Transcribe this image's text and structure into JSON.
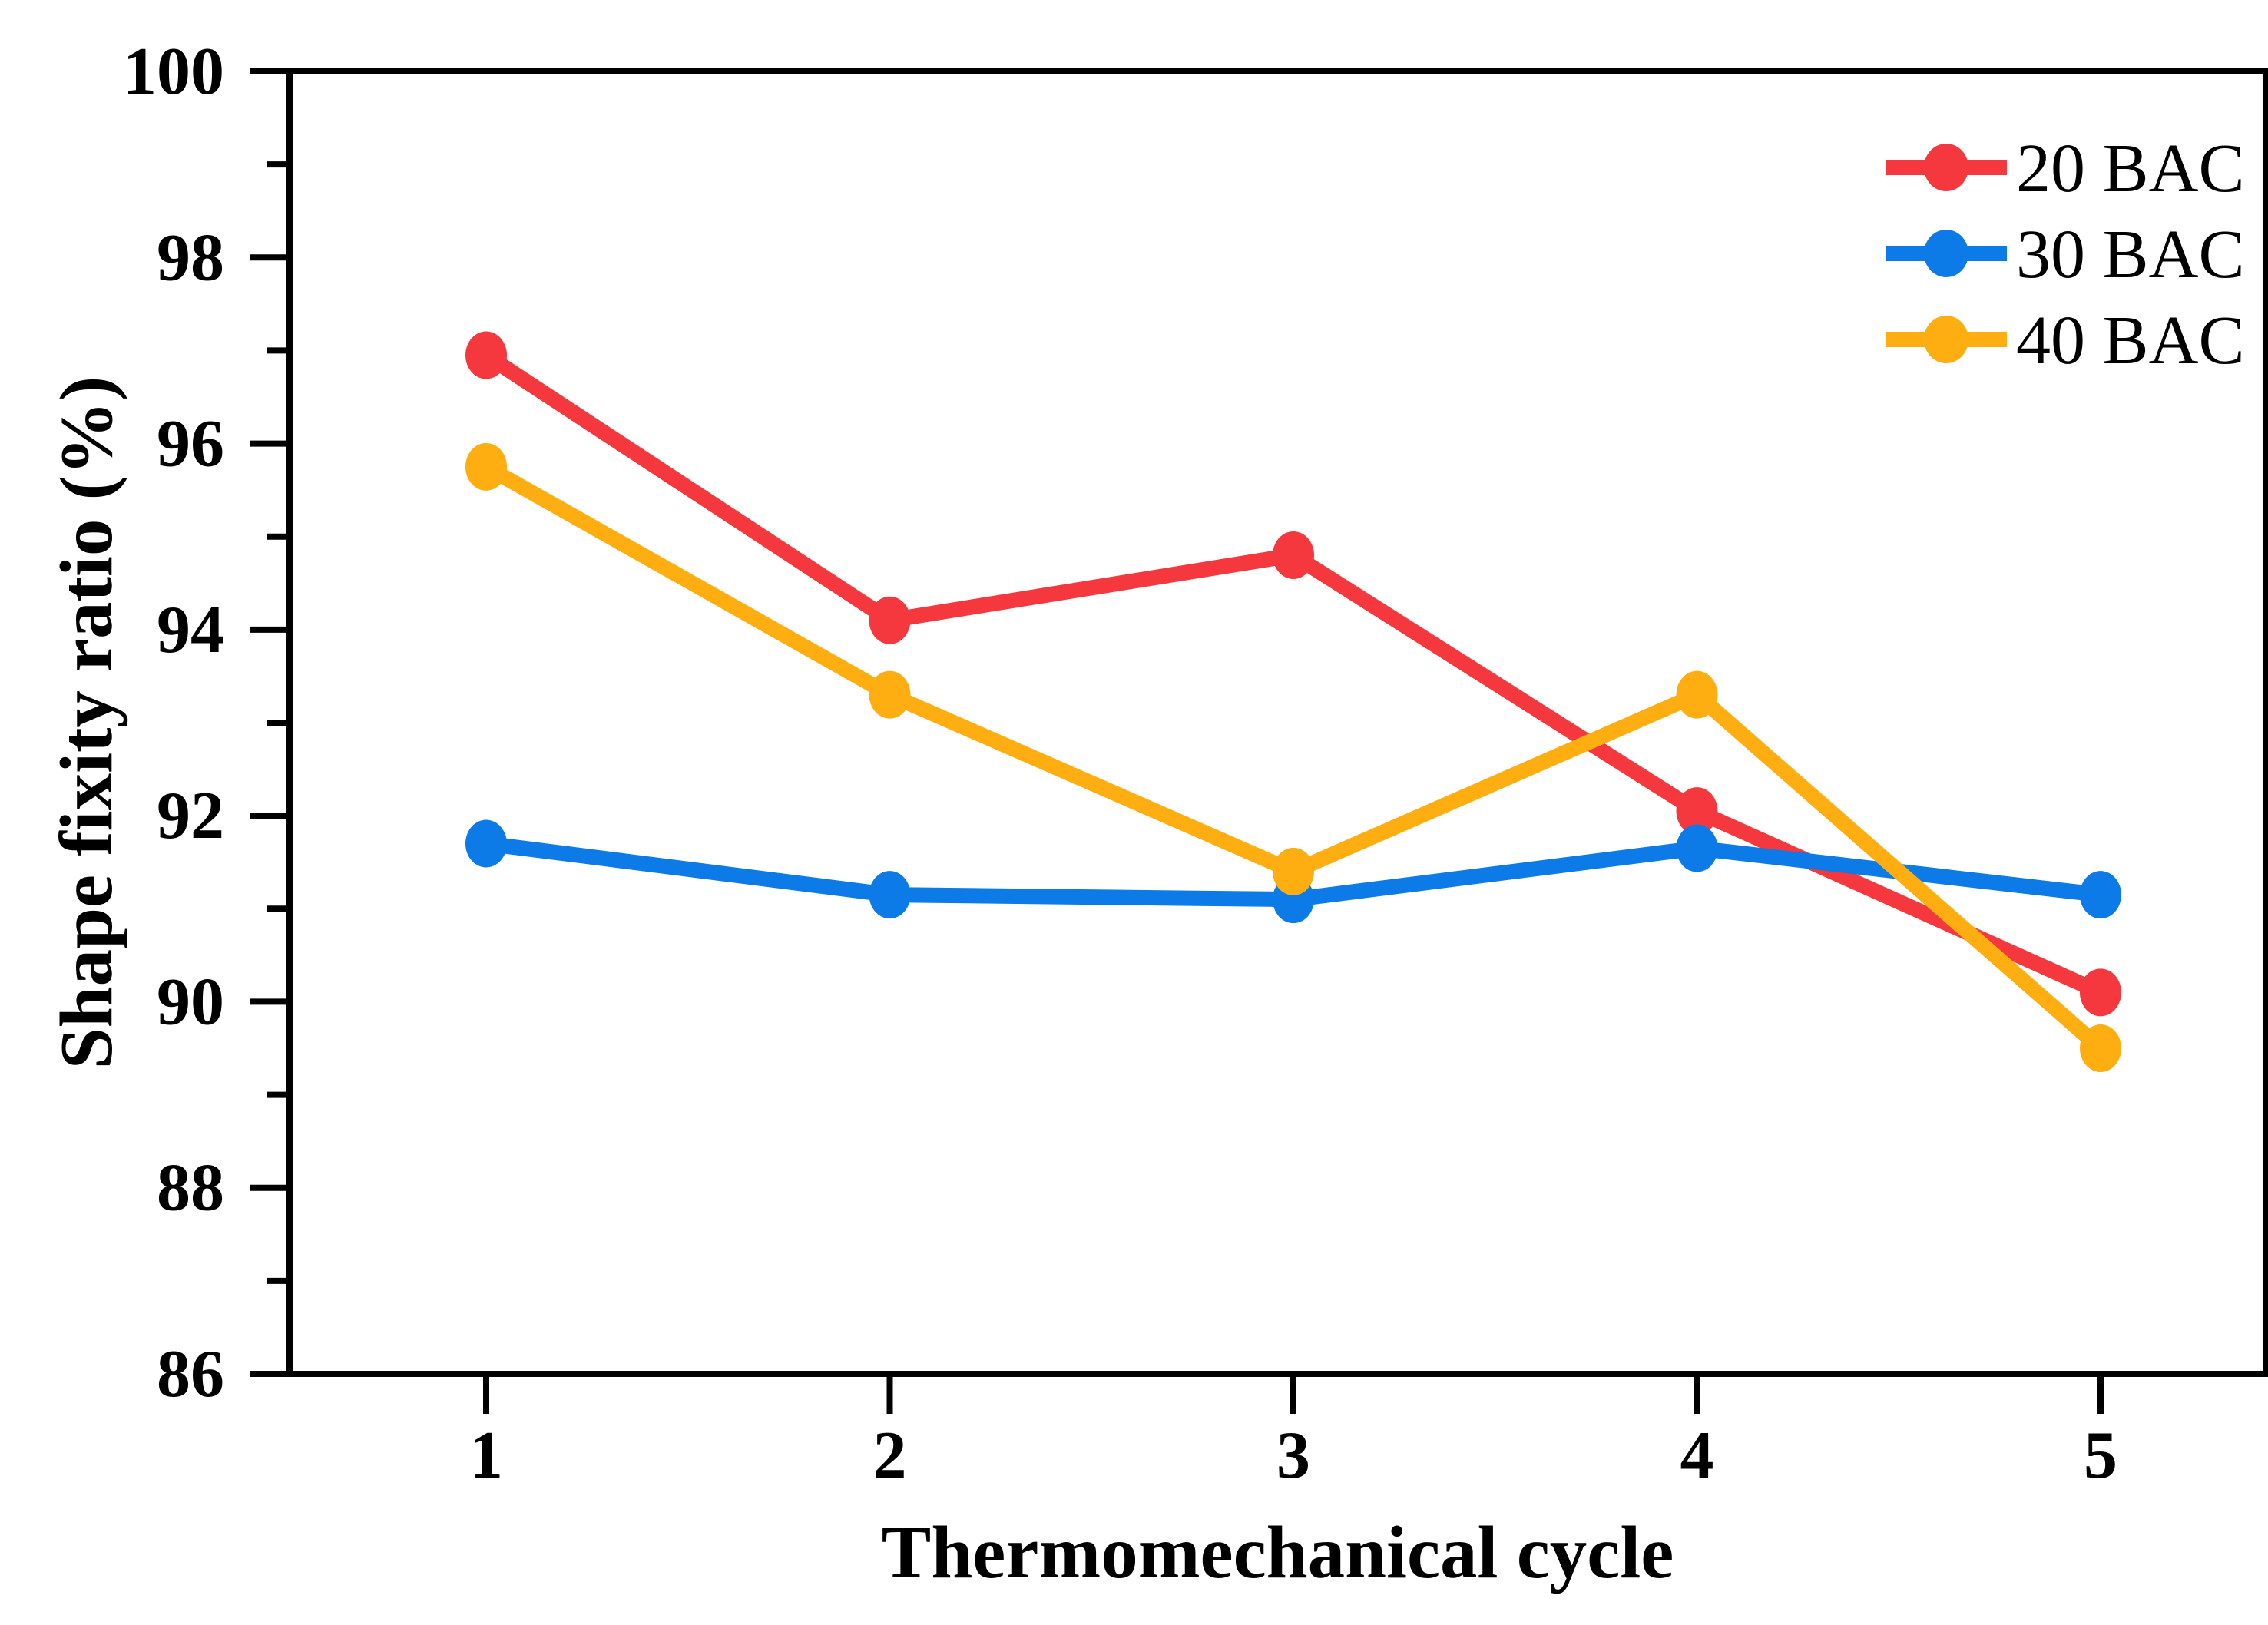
{
  "chart_data": {
    "type": "line",
    "title": "",
    "xlabel": "Thermomechanical cycle",
    "ylabel": "Shape fixity ratio (%)",
    "x": [
      1,
      2,
      3,
      4,
      5
    ],
    "x_tick_labels": [
      "1",
      "2",
      "3",
      "4",
      "5"
    ],
    "ylim": [
      86,
      100
    ],
    "y_major_ticks": [
      86,
      88,
      90,
      92,
      94,
      96,
      98,
      100
    ],
    "y_tick_labels": [
      "86",
      "88",
      "90",
      "92",
      "94",
      "96",
      "98",
      "100"
    ],
    "y_minor_ticks": [
      87,
      89,
      91,
      93,
      95,
      97,
      99
    ],
    "grid": false,
    "legend_position": "top-right",
    "legend_entries": [
      "20 BAC",
      "30 BAC",
      "40 BAC"
    ],
    "series": [
      {
        "name": "20 BAC",
        "color": "#F4383E",
        "values": [
          96.95,
          94.1,
          94.8,
          92.05,
          90.1
        ]
      },
      {
        "name": "30 BAC",
        "color": "#0C7BE8",
        "values": [
          91.7,
          91.15,
          91.1,
          91.65,
          91.15
        ]
      },
      {
        "name": "40 BAC",
        "color": "#FFAE12",
        "values": [
          95.75,
          93.3,
          91.4,
          93.3,
          89.5
        ]
      }
    ],
    "axis_color": "#000000",
    "text_color": "#000000",
    "background": "#FFFFFF"
  }
}
